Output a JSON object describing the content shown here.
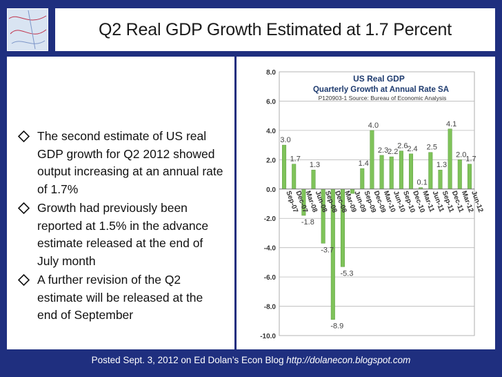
{
  "slide": {
    "title": "Q2 Real GDP Growth Estimated at 1.7 Percent",
    "bullets": [
      "The second estimate of US real GDP growth for Q2 2012 showed output increasing at an annual rate of 1.7%",
      "Growth had previously been reported at 1.5% in the advance estimate released at the end of July month",
      "A further revision of the Q2 estimate will be released at the end of September"
    ],
    "footer_text": "Posted Sept. 3, 2012 on Ed Dolan’s Econ Blog",
    "footer_url": "http://dolanecon.blogspot.com"
  },
  "colors": {
    "background": "#1f2f7f",
    "bar": "#7fc35a",
    "bar_edge": "#5a9a3c"
  },
  "chart_data": {
    "type": "bar",
    "title": "US  Real GDP",
    "subtitle": "Quarterly Growth at Annual Rate SA",
    "source": "P120903-1 Source: Bureau of Economic Analysis",
    "ylim": [
      -10.0,
      8.0
    ],
    "yticks": [
      "8.0",
      "6.0",
      "4.0",
      "2.0",
      "0.0",
      "-2.0",
      "-4.0",
      "-6.0",
      "-8.0",
      "-10.0"
    ],
    "grid": true,
    "categories": [
      "Sep-07",
      "Dec-07",
      "Mar-08",
      "Jun-08",
      "Sep-08",
      "Dec-08",
      "Mar-09",
      "Jun-09",
      "Sep-09",
      "Dec-09",
      "Mar-10",
      "Jun-10",
      "Sep-10",
      "Dec-10",
      "Mar-11",
      "Jun-11",
      "Sep-11",
      "Dec-11",
      "Mar-12",
      "Jun-12"
    ],
    "x_tick_labels": [
      "Sep-07",
      "Dec-07",
      "Mar-08",
      "Jun-08",
      "Sep-08",
      "Dec-08",
      "Mar-09",
      "Jun-09",
      "Sep-09",
      "Dec-09",
      "Mar-10",
      "Jun-10",
      "Sep-10",
      "Dec-10",
      "Mar-11",
      "Jun-11",
      "Sep-11",
      "Dec-11",
      "Mar-12",
      "Jun-12"
    ],
    "values": [
      3.0,
      1.7,
      -1.8,
      1.3,
      -3.7,
      -8.9,
      -5.3,
      -0.3,
      1.4,
      4.0,
      2.3,
      2.2,
      2.6,
      2.4,
      0.1,
      2.5,
      1.3,
      4.1,
      2.0,
      1.7
    ],
    "data_labels": [
      "3.0",
      "1.7",
      "-1.8",
      "1.3",
      "-3.7",
      "-8.9",
      "-5.3",
      "",
      "1.4",
      "4.0",
      "2.3",
      "2.2",
      "2.6",
      "2.4",
      "0.1",
      "2.5",
      "1.3",
      "4.1",
      "2.0",
      "1.7"
    ]
  }
}
